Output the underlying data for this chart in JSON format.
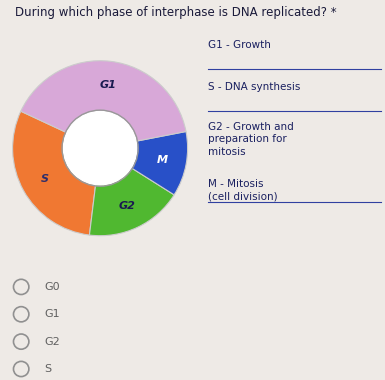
{
  "title": "During which phase of interphase is DNA replicated? *",
  "slices": [
    {
      "label": "S",
      "value": 30,
      "color": "#f07832",
      "text_color": "#2d2d6b"
    },
    {
      "label": "G2",
      "value": 18,
      "color": "#50b830",
      "text_color": "#1a1a50"
    },
    {
      "label": "M",
      "value": 12,
      "color": "#2850c8",
      "text_color": "#ffffff"
    },
    {
      "label": "G1",
      "value": 40,
      "color": "#d8a8d8",
      "text_color": "#1a1a50"
    }
  ],
  "legend": [
    {
      "label": "G1 - Growth",
      "sep": true
    },
    {
      "label": "S - DNA synthesis",
      "sep": true
    },
    {
      "label": "G2 - Growth and\npreparation for\nmitosis",
      "sep": true
    },
    {
      "label": "M - Mitosis\n(cell division)",
      "sep": false
    }
  ],
  "options": [
    "G0",
    "G1",
    "G2",
    "S"
  ],
  "bg_color": "#eeeae6",
  "donut_hole": 0.42,
  "start_angle": 155,
  "title_fontsize": 8.5,
  "label_fontsize": 8,
  "legend_fontsize": 7.5,
  "options_fontsize": 8,
  "legend_color": "#1a2060",
  "sep_color": "#3040a0"
}
